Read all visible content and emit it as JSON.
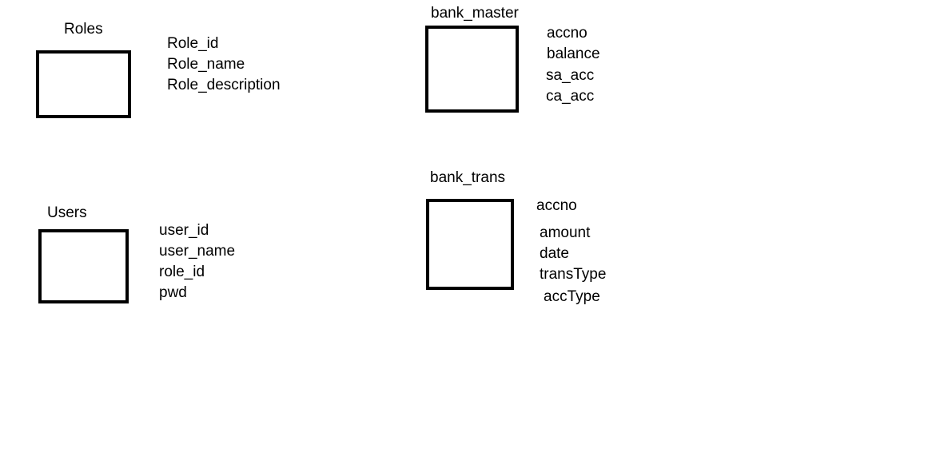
{
  "entities": {
    "roles": {
      "title": "Roles",
      "attributes": [
        "Role_id",
        "Role_name",
        "Role_description"
      ]
    },
    "bank_master": {
      "title": "bank_master",
      "attributes": [
        "accno",
        "balance",
        "sa_acc",
        "ca_acc"
      ]
    },
    "users": {
      "title": "Users",
      "attributes": [
        "user_id",
        "user_name",
        "role_id",
        "pwd"
      ]
    },
    "bank_trans": {
      "title": "bank_trans",
      "attributes": [
        "accno",
        "amount",
        "date",
        "transType",
        "accType"
      ]
    }
  }
}
